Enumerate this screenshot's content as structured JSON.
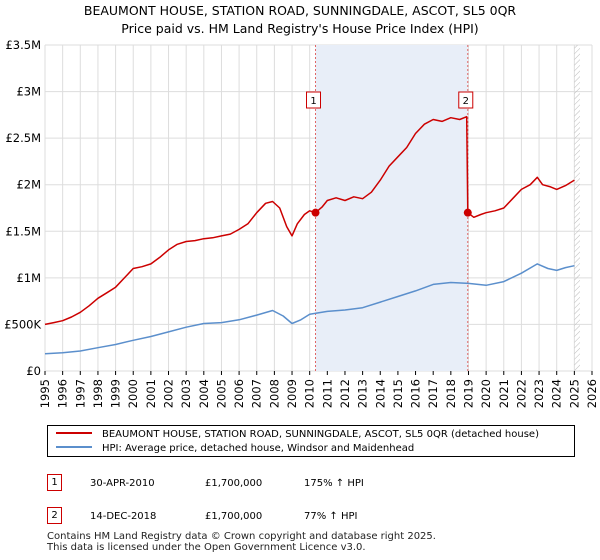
{
  "chart_data": {
    "type": "line",
    "title": "BEAUMONT HOUSE, STATION ROAD, SUNNINGDALE, ASCOT, SL5 0QR",
    "subtitle": "Price paid vs. HM Land Registry's House Price Index (HPI)",
    "xlabel": "",
    "ylabel": "",
    "xlim": [
      1995,
      2026
    ],
    "ylim": [
      0,
      3500000
    ],
    "grid": true,
    "y_ticks": [
      {
        "value": 0,
        "label": "£0"
      },
      {
        "value": 500000,
        "label": "£500K"
      },
      {
        "value": 1000000,
        "label": "£1M"
      },
      {
        "value": 1500000,
        "label": "£1.5M"
      },
      {
        "value": 2000000,
        "label": "£2M"
      },
      {
        "value": 2500000,
        "label": "£2.5M"
      },
      {
        "value": 3000000,
        "label": "£3M"
      },
      {
        "value": 3500000,
        "label": "£3.5M"
      }
    ],
    "x_ticks": [
      "1995",
      "1996",
      "1997",
      "1998",
      "1999",
      "2000",
      "2001",
      "2002",
      "2003",
      "2004",
      "2005",
      "2006",
      "2007",
      "2008",
      "2009",
      "2010",
      "2011",
      "2012",
      "2013",
      "2014",
      "2015",
      "2016",
      "2017",
      "2018",
      "2019",
      "2020",
      "2021",
      "2022",
      "2023",
      "2024",
      "2025",
      "2026"
    ],
    "shaded_range": [
      2010.33,
      2018.96
    ],
    "future_hatch_from": 2025.0,
    "series": [
      {
        "name": "BEAUMONT HOUSE, STATION ROAD, SUNNINGDALE, ASCOT, SL5 0QR (detached house)",
        "color": "#cc0000",
        "x": [
          1995.0,
          1995.5,
          1996.0,
          1996.5,
          1997.0,
          1997.5,
          1998.0,
          1998.5,
          1999.0,
          1999.5,
          2000.0,
          2000.5,
          2001.0,
          2001.5,
          2002.0,
          2002.5,
          2003.0,
          2003.5,
          2004.0,
          2004.5,
          2005.0,
          2005.5,
          2006.0,
          2006.5,
          2007.0,
          2007.5,
          2007.9,
          2008.3,
          2008.7,
          2009.0,
          2009.3,
          2009.7,
          2010.0,
          2010.33,
          2010.7,
          2011.0,
          2011.5,
          2012.0,
          2012.5,
          2013.0,
          2013.5,
          2014.0,
          2014.5,
          2015.0,
          2015.5,
          2016.0,
          2016.5,
          2017.0,
          2017.5,
          2018.0,
          2018.5,
          2018.9,
          2018.96,
          2019.3,
          2019.7,
          2020.0,
          2020.5,
          2021.0,
          2021.5,
          2022.0,
          2022.5,
          2022.9,
          2023.2,
          2023.6,
          2024.0,
          2024.5,
          2025.0
        ],
        "values": [
          500000,
          520000,
          540000,
          580000,
          630000,
          700000,
          780000,
          840000,
          900000,
          1000000,
          1100000,
          1120000,
          1150000,
          1220000,
          1300000,
          1360000,
          1390000,
          1400000,
          1420000,
          1430000,
          1450000,
          1470000,
          1520000,
          1580000,
          1700000,
          1800000,
          1820000,
          1750000,
          1550000,
          1450000,
          1580000,
          1680000,
          1720000,
          1700000,
          1760000,
          1830000,
          1860000,
          1830000,
          1870000,
          1850000,
          1920000,
          2050000,
          2200000,
          2300000,
          2400000,
          2550000,
          2650000,
          2700000,
          2680000,
          2720000,
          2700000,
          2730000,
          1700000,
          1650000,
          1680000,
          1700000,
          1720000,
          1750000,
          1850000,
          1950000,
          2000000,
          2080000,
          2000000,
          1980000,
          1950000,
          1990000,
          2050000
        ]
      },
      {
        "name": "HPI: Average price, detached house, Windsor and Maidenhead",
        "color": "#5b8fcc",
        "x": [
          1995.0,
          1996.0,
          1997.0,
          1998.0,
          1999.0,
          2000.0,
          2001.0,
          2002.0,
          2003.0,
          2004.0,
          2005.0,
          2006.0,
          2007.0,
          2007.9,
          2008.5,
          2009.0,
          2009.5,
          2010.0,
          2011.0,
          2012.0,
          2013.0,
          2014.0,
          2015.0,
          2016.0,
          2017.0,
          2018.0,
          2019.0,
          2020.0,
          2021.0,
          2022.0,
          2022.9,
          2023.5,
          2024.0,
          2024.5,
          2025.0
        ],
        "values": [
          185000,
          195000,
          215000,
          250000,
          285000,
          330000,
          370000,
          420000,
          470000,
          510000,
          520000,
          550000,
          600000,
          650000,
          590000,
          510000,
          550000,
          610000,
          640000,
          655000,
          680000,
          740000,
          800000,
          860000,
          930000,
          950000,
          940000,
          920000,
          960000,
          1050000,
          1150000,
          1100000,
          1080000,
          1110000,
          1130000
        ]
      }
    ],
    "annotations": [
      {
        "label": "1",
        "x": 2010.33,
        "y": 1700000
      },
      {
        "label": "2",
        "x": 2018.96,
        "y": 1700000
      }
    ]
  },
  "legend": {
    "property_label": "BEAUMONT HOUSE, STATION ROAD, SUNNINGDALE, ASCOT, SL5 0QR (detached house)",
    "hpi_label": "HPI: Average price, detached house, Windsor and Maidenhead"
  },
  "sales": [
    {
      "num": "1",
      "date": "30-APR-2010",
      "price": "£1,700,000",
      "pct": "175% ↑ HPI"
    },
    {
      "num": "2",
      "date": "14-DEC-2018",
      "price": "£1,700,000",
      "pct": "77% ↑ HPI"
    }
  ],
  "footer": {
    "line1": "Contains HM Land Registry data © Crown copyright and database right 2025.",
    "line2": "This data is licensed under the Open Government Licence v3.0."
  },
  "colors": {
    "property": "#cc0000",
    "hpi": "#5b8fcc",
    "grid": "#dddddd",
    "shade": "#e8eef8"
  }
}
